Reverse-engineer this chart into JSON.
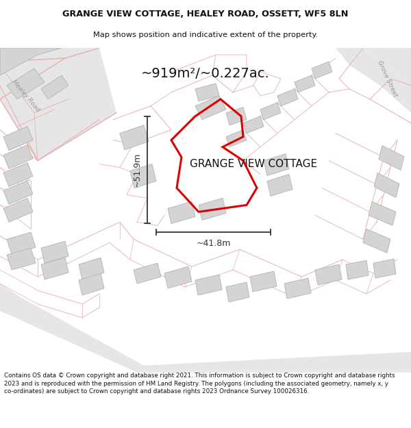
{
  "title": "GRANGE VIEW COTTAGE, HEALEY ROAD, OSSETT, WF5 8LN",
  "subtitle": "Map shows position and indicative extent of the property.",
  "area_text": "~919m²/~0.227ac.",
  "property_label": "GRANGE VIEW COTTAGE",
  "dim_h": "~51.9m",
  "dim_w": "~41.8m",
  "footer": "Contains OS data © Crown copyright and database right 2021. This information is subject to Crown copyright and database rights 2023 and is reproduced with the permission of HM Land Registry. The polygons (including the associated geometry, namely x, y co-ordinates) are subject to Crown copyright and database rights 2023 Ordnance Survey 100026316.",
  "map_bg": "#f7f5f5",
  "road_fill": "#e8e8e8",
  "parcel_line": "#e8b0b0",
  "building_fill": "#d4d4d4",
  "building_edge": "#b8b8b8",
  "property_color": "#dd0000",
  "dim_color": "#333333",
  "title_color": "#111111",
  "road_label_color": "#999999",
  "healey_road_label": "Healey Road",
  "grove_street_label": "Grove Street"
}
